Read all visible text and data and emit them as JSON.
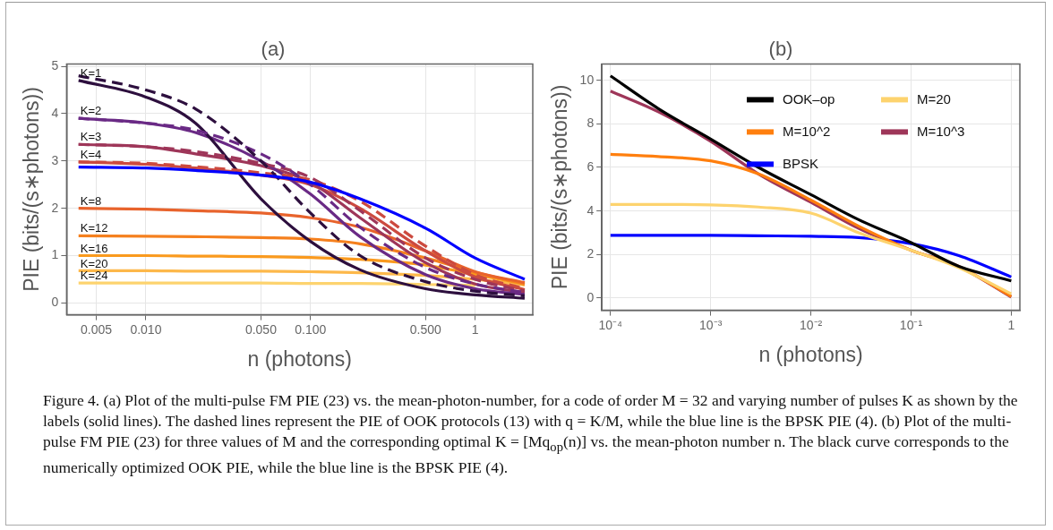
{
  "chart_data": [
    {
      "type": "line",
      "title": "(a)",
      "xlabel": "n (photons)",
      "ylabel": "PIE (bits/(s∗photons))",
      "log": "x",
      "grid": true,
      "legend": false,
      "marker": "none",
      "x": [
        0.0039,
        0.01,
        0.02,
        0.05,
        0.1,
        0.2,
        0.5,
        1,
        2
      ],
      "xlim": [
        0.0033,
        2.24
      ],
      "ylim": [
        -0.25,
        5.05
      ],
      "xticks": [
        {
          "value": 0.005,
          "label": "0.005"
        },
        {
          "value": 0.01,
          "label": "0.010"
        },
        {
          "value": 0.05,
          "label": "0.050"
        },
        {
          "value": 0.1,
          "label": "0.100"
        },
        {
          "value": 0.5,
          "label": "0.500"
        },
        1
      ],
      "yticks": [
        0,
        1,
        2,
        3,
        4,
        5
      ],
      "series": [
        {
          "color": "#0000ff",
          "line_style": "solid",
          "values": [
            2.87,
            2.85,
            2.8,
            2.7,
            2.55,
            2.2,
            1.58,
            0.95,
            0.5
          ]
        },
        {
          "color": "#2d0f3e",
          "line_style": "dashed",
          "values": [
            4.8,
            4.5,
            4.1,
            3.0,
            1.9,
            1.0,
            0.45,
            0.25,
            0.15
          ]
        },
        {
          "color": "#6a2a85",
          "line_style": "dashed",
          "values": [
            3.9,
            3.8,
            3.65,
            3.15,
            2.5,
            1.6,
            0.75,
            0.4,
            0.22
          ]
        },
        {
          "color": "#9e3659",
          "line_style": "dashed",
          "values": [
            3.35,
            3.3,
            3.2,
            2.95,
            2.65,
            1.95,
            0.95,
            0.5,
            0.25
          ]
        },
        {
          "color": "#cc4a3f",
          "line_style": "dashed",
          "values": [
            2.98,
            2.95,
            2.88,
            2.75,
            2.6,
            2.15,
            1.2,
            0.6,
            0.3
          ]
        },
        {
          "name": "K=1",
          "color": "#2d0f3e",
          "line_style": "solid",
          "values": [
            4.7,
            4.35,
            3.8,
            2.2,
            1.3,
            0.7,
            0.3,
            0.17,
            0.1
          ]
        },
        {
          "name": "K=2",
          "color": "#6a2a85",
          "line_style": "solid",
          "values": [
            3.9,
            3.8,
            3.6,
            3.0,
            2.3,
            1.4,
            0.6,
            0.3,
            0.18
          ]
        },
        {
          "name": "K=3",
          "color": "#9e3659",
          "line_style": "solid",
          "values": [
            3.35,
            3.3,
            3.15,
            2.9,
            2.55,
            1.8,
            0.85,
            0.4,
            0.22
          ]
        },
        {
          "name": "K=4",
          "color": "#cc4a3f",
          "line_style": "solid",
          "values": [
            2.98,
            2.93,
            2.85,
            2.7,
            2.5,
            2.0,
            1.1,
            0.55,
            0.28
          ]
        },
        {
          "name": "K=8",
          "color": "#e8632c",
          "line_style": "solid",
          "values": [
            2.0,
            1.98,
            1.95,
            1.9,
            1.8,
            1.6,
            1.1,
            0.66,
            0.43
          ]
        },
        {
          "name": "K=12",
          "color": "#f5801e",
          "line_style": "solid",
          "values": [
            1.42,
            1.41,
            1.4,
            1.38,
            1.35,
            1.25,
            0.95,
            0.65,
            0.4
          ]
        },
        {
          "name": "K=16",
          "color": "#fa9a1e",
          "line_style": "solid",
          "values": [
            1.0,
            1.0,
            0.99,
            0.98,
            0.96,
            0.92,
            0.8,
            0.6,
            0.4
          ]
        },
        {
          "name": "K=20",
          "color": "#fdb84a",
          "line_style": "solid",
          "values": [
            0.68,
            0.68,
            0.67,
            0.67,
            0.66,
            0.64,
            0.58,
            0.5,
            0.38
          ]
        },
        {
          "name": "K=24",
          "color": "#fdd36e",
          "line_style": "solid",
          "values": [
            0.42,
            0.42,
            0.42,
            0.42,
            0.41,
            0.41,
            0.39,
            0.37,
            null
          ]
        }
      ],
      "annotations": [
        "Figure 4. (a) Plot of the multi-pulse FM PIE (23) vs. the mean-photon-number, for a code of order M = 32 and varying number of pulses K as shown by the labels (solid lines). The dashed lines represent the PIE of OOK protocols (13) with q = K/M, while the blue line is the BPSK PIE (4). (b) Plot of the multi-pulse FM PIE (23) for three values of M and the corresponding optimal K = [Mq$_{op}$(n)] vs. the mean-photon number n. The black curve corresponds to the numerically optimized OOK PIE, while the blue line is the BPSK PIE (4)."
      ]
    },
    {
      "type": "line",
      "title": "(b)",
      "xlabel": "n (photons)",
      "ylabel": "PIE (bits/(s∗photons))",
      "log": "x",
      "grid": true,
      "legend": "top right",
      "marker": "none",
      "x": [
        0.0001,
        0.0003,
        0.001,
        0.003,
        0.01,
        0.03,
        0.1,
        0.3,
        1
      ],
      "xlim": [
        8.2e-05,
        1.22
      ],
      "ylim": [
        -0.56,
        10.75
      ],
      "xticks": [
        {
          "value": 0.0001,
          "label": "10⁻⁴"
        },
        {
          "value": 0.001,
          "label": "10⁻³"
        },
        {
          "value": 0.01,
          "label": "10⁻²"
        },
        {
          "value": 0.1,
          "label": "10⁻¹"
        },
        1
      ],
      "yticks": [
        0,
        2,
        4,
        6,
        8,
        10
      ],
      "series": [
        {
          "name": "OOK–op",
          "color": "#000000",
          "values": [
            10.2,
            8.7,
            7.3,
            6.0,
            4.75,
            3.6,
            2.55,
            1.46,
            0.79
          ]
        },
        {
          "name": "M=20",
          "color": "#fdd36e",
          "values": [
            4.3,
            4.3,
            4.28,
            4.18,
            3.9,
            3.0,
            2.2,
            1.4,
            0.2
          ]
        },
        {
          "name": "M=10^2",
          "color": "#ff7f0e",
          "values": [
            6.6,
            6.5,
            6.3,
            5.7,
            4.5,
            3.3,
            2.2,
            1.45,
            0.08
          ]
        },
        {
          "name": "M=10^3",
          "color": "#9e3659",
          "values": [
            9.5,
            8.55,
            7.2,
            5.7,
            4.4,
            3.2,
            2.2,
            1.45,
            0.05
          ]
        },
        {
          "name": "BPSK",
          "color": "#0000ff",
          "values": [
            2.88,
            2.88,
            2.88,
            2.86,
            2.84,
            2.78,
            2.5,
            1.95,
            0.97
          ]
        }
      ]
    }
  ]
}
